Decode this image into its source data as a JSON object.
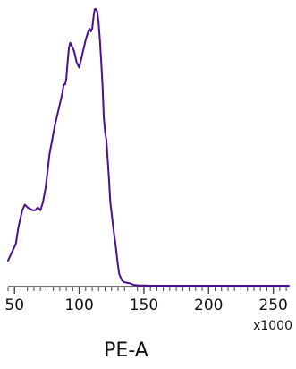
{
  "chart_data": {
    "type": "line",
    "xlabel": "PE-A",
    "x_multiplier_label": "x1000",
    "xlim": [
      45,
      262
    ],
    "ylim": [
      0,
      1
    ],
    "grid": false,
    "legend": "none",
    "x_ticks": [
      50,
      100,
      150,
      200,
      250
    ],
    "x_tick_labels": [
      "50",
      "100",
      "150",
      "200",
      "250"
    ],
    "line_color": "#4b0f8f",
    "axis_color": "#444444",
    "series": [
      {
        "x": [
          45,
          48,
          51,
          53,
          56,
          58,
          60,
          64,
          66,
          68,
          70,
          72,
          74,
          76,
          77,
          79,
          81,
          83,
          85,
          87,
          88,
          89,
          90,
          91,
          92,
          93,
          94,
          96,
          98,
          100,
          101,
          102,
          103,
          104,
          105,
          107,
          108,
          109,
          110,
          111,
          112,
          113,
          114,
          115,
          116,
          117,
          118,
          119,
          120,
          121,
          122,
          123,
          124,
          126,
          127,
          128,
          129,
          130,
          131,
          132,
          133,
          134,
          135,
          136,
          137,
          138,
          140,
          142,
          144,
          146,
          148,
          150,
          155,
          165,
          175,
          190,
          210,
          230,
          250,
          262
        ],
        "y": [
          0.09,
          0.12,
          0.15,
          0.21,
          0.27,
          0.29,
          0.28,
          0.27,
          0.27,
          0.28,
          0.27,
          0.3,
          0.35,
          0.43,
          0.47,
          0.52,
          0.57,
          0.61,
          0.65,
          0.69,
          0.72,
          0.72,
          0.74,
          0.8,
          0.85,
          0.87,
          0.86,
          0.84,
          0.8,
          0.78,
          0.8,
          0.82,
          0.84,
          0.86,
          0.88,
          0.91,
          0.92,
          0.91,
          0.92,
          0.96,
          0.99,
          0.99,
          0.98,
          0.94,
          0.88,
          0.8,
          0.72,
          0.6,
          0.55,
          0.52,
          0.45,
          0.38,
          0.3,
          0.22,
          0.18,
          0.15,
          0.11,
          0.07,
          0.04,
          0.03,
          0.02,
          0.015,
          0.012,
          0.012,
          0.01,
          0.01,
          0.007,
          0.003,
          0.002,
          0.001,
          0.001,
          0.001,
          0.0,
          0.0,
          0.0,
          0.0,
          0.0,
          0.0,
          0.0,
          0.0
        ]
      }
    ]
  }
}
